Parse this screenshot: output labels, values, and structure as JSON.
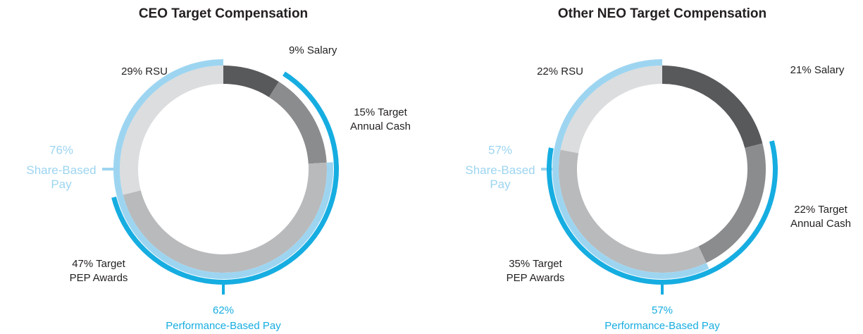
{
  "chart_data": [
    {
      "type": "donut",
      "title": "CEO Target Compensation",
      "values": [
        9,
        15,
        47,
        29
      ],
      "value_labels": [
        "9% Salary",
        "15% Target\nAnnual Cash",
        "47% Target\nPEP Awards",
        "29% RSU"
      ],
      "colors": [
        "#58595b",
        "#8b8c8e",
        "#b9babc",
        "#dcddde"
      ],
      "groups": [
        {
          "name": "Share-Based\nPay",
          "value": 76,
          "value_label": "76%",
          "from": 2,
          "color": "#9dd5f1",
          "side": "left"
        },
        {
          "name": "Performance-Based Pay",
          "value": 62,
          "value_label": "62%",
          "from": 1,
          "color": "#16ade1",
          "side": "bottom"
        }
      ]
    },
    {
      "type": "donut",
      "title": "Other NEO Target Compensation",
      "values": [
        21,
        22,
        35,
        22
      ],
      "value_labels": [
        "21% Salary",
        "22% Target\nAnnual Cash",
        "35% Target\nPEP Awards",
        "22% RSU"
      ],
      "colors": [
        "#58595b",
        "#8b8c8e",
        "#b9babc",
        "#dcddde"
      ],
      "groups": [
        {
          "name": "Share-Based\nPay",
          "value": 57,
          "value_label": "57%",
          "from": 2,
          "color": "#9dd5f1",
          "side": "left"
        },
        {
          "name": "Performance-Based Pay",
          "value": 57,
          "value_label": "57%",
          "from": 1,
          "color": "#16ade1",
          "side": "bottom"
        }
      ]
    }
  ]
}
